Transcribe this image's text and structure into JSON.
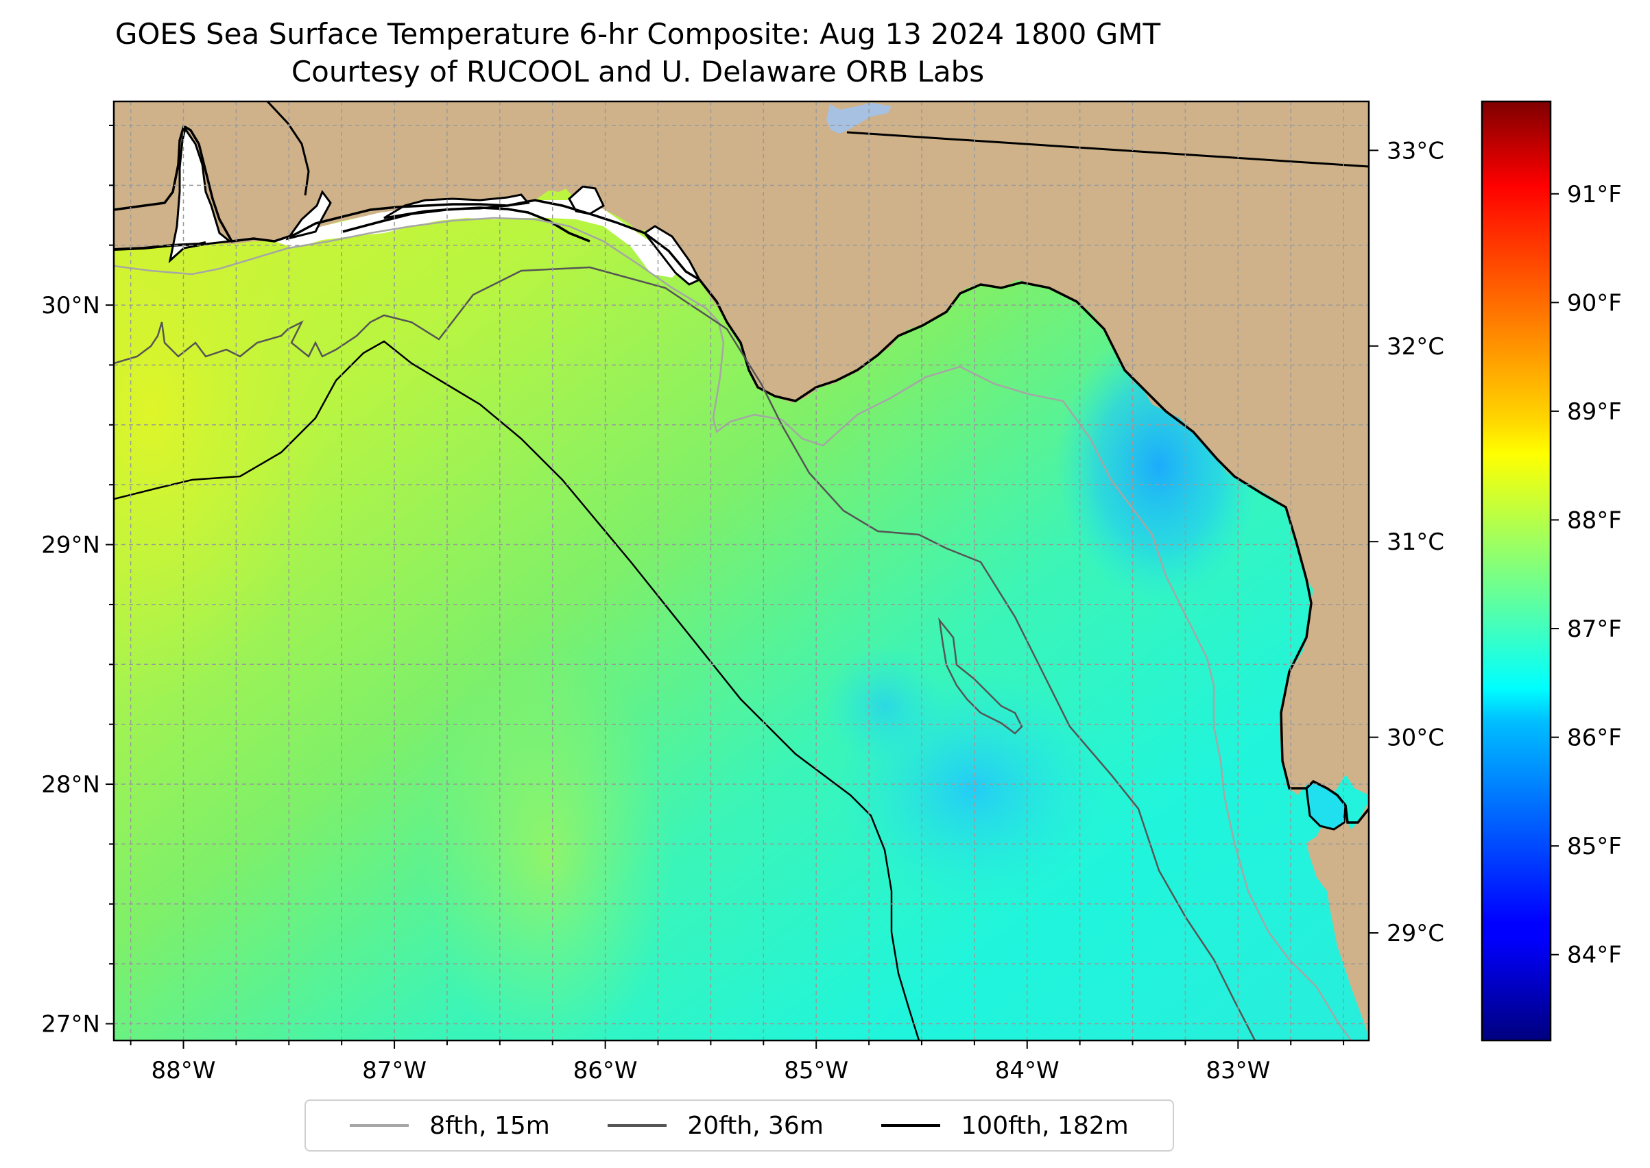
{
  "title": {
    "line1": "GOES Sea Surface Temperature 6-hr Composite: Aug 13 2024 1800 GMT",
    "line2": "Courtesy of RUCOOL and U. Delaware ORB Labs"
  },
  "map": {
    "lon_range": [
      -88.33,
      -82.38
    ],
    "lat_range": [
      26.93,
      30.85
    ],
    "lon_ticks": [
      {
        "value": -88,
        "label": "88°W"
      },
      {
        "value": -87,
        "label": "87°W"
      },
      {
        "value": -86,
        "label": "86°W"
      },
      {
        "value": -85,
        "label": "85°W"
      },
      {
        "value": -84,
        "label": "84°W"
      },
      {
        "value": -83,
        "label": "83°W"
      }
    ],
    "lat_ticks": [
      {
        "value": 27,
        "label": "27°N"
      },
      {
        "value": 28,
        "label": "28°N"
      },
      {
        "value": 29,
        "label": "29°N"
      },
      {
        "value": 30,
        "label": "30°N"
      }
    ],
    "grid": true,
    "land_color": "#cfb28a",
    "water_body_color": "#a7c1e3"
  },
  "colorbar": {
    "colormap": "jet",
    "range_c": [
      28.45,
      33.25
    ],
    "celsius_ticks": [
      {
        "value": 29,
        "label": "29°C"
      },
      {
        "value": 30,
        "label": "30°C"
      },
      {
        "value": 31,
        "label": "31°C"
      },
      {
        "value": 32,
        "label": "32°C"
      },
      {
        "value": 33,
        "label": "33°C"
      }
    ],
    "fahrenheit_ticks": [
      {
        "value": 84,
        "label": "84°F"
      },
      {
        "value": 85,
        "label": "85°F"
      },
      {
        "value": 86,
        "label": "86°F"
      },
      {
        "value": 87,
        "label": "87°F"
      },
      {
        "value": 88,
        "label": "88°F"
      },
      {
        "value": 89,
        "label": "89°F"
      },
      {
        "value": 90,
        "label": "90°F"
      },
      {
        "value": 91,
        "label": "91°F"
      }
    ]
  },
  "legend": {
    "location": "bottom-center",
    "entries": [
      {
        "label": "8fth, 15m",
        "color": "#a6a6a6"
      },
      {
        "label": "20fth, 36m",
        "color": "#555555"
      },
      {
        "label": "100fth, 182m",
        "color": "#000000"
      }
    ]
  }
}
